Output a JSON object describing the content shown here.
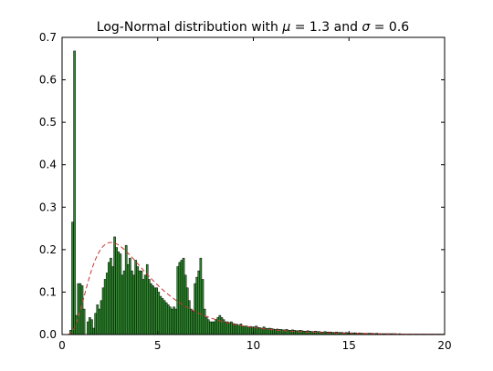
{
  "chart_data": {
    "type": "bar",
    "title_main": "Log-Normal distribution with ",
    "title_mu": "μ",
    "title_mid": " = 1.3 and ",
    "title_sigma": "σ",
    "title_end": " = 0.6",
    "xlabel": "",
    "ylabel": "",
    "xlim": [
      0,
      20
    ],
    "ylim": [
      0,
      0.7
    ],
    "xticks": [
      0,
      5,
      10,
      15,
      20
    ],
    "yticks": [
      0.0,
      0.1,
      0.2,
      0.3,
      0.4,
      0.5,
      0.6,
      0.7
    ],
    "bin_start": 0.0,
    "bin_width": 0.1,
    "values": [
      0.0,
      0.0,
      0.0,
      0.0,
      0.01,
      0.265,
      0.668,
      0.045,
      0.12,
      0.12,
      0.115,
      0.06,
      0.0,
      0.03,
      0.04,
      0.035,
      0.015,
      0.05,
      0.07,
      0.06,
      0.08,
      0.11,
      0.13,
      0.145,
      0.17,
      0.18,
      0.16,
      0.23,
      0.205,
      0.195,
      0.19,
      0.14,
      0.15,
      0.21,
      0.165,
      0.18,
      0.15,
      0.14,
      0.175,
      0.16,
      0.15,
      0.15,
      0.13,
      0.14,
      0.165,
      0.13,
      0.12,
      0.115,
      0.11,
      0.11,
      0.1,
      0.09,
      0.085,
      0.08,
      0.075,
      0.07,
      0.065,
      0.06,
      0.065,
      0.06,
      0.16,
      0.17,
      0.175,
      0.18,
      0.14,
      0.11,
      0.08,
      0.06,
      0.055,
      0.12,
      0.135,
      0.15,
      0.18,
      0.13,
      0.06,
      0.04,
      0.035,
      0.03,
      0.03,
      0.03,
      0.035,
      0.04,
      0.045,
      0.04,
      0.035,
      0.03,
      0.03,
      0.028,
      0.03,
      0.026,
      0.025,
      0.024,
      0.022,
      0.025,
      0.02,
      0.02,
      0.02,
      0.018,
      0.019,
      0.018,
      0.018,
      0.02,
      0.017,
      0.016,
      0.015,
      0.018,
      0.015,
      0.014,
      0.015,
      0.014,
      0.013,
      0.012,
      0.013,
      0.012,
      0.012,
      0.011,
      0.011,
      0.012,
      0.01,
      0.01,
      0.011,
      0.01,
      0.009,
      0.009,
      0.01,
      0.009,
      0.008,
      0.008,
      0.009,
      0.008,
      0.007,
      0.007,
      0.008,
      0.007,
      0.007,
      0.006,
      0.006,
      0.007,
      0.006,
      0.006,
      0.006,
      0.005,
      0.005,
      0.006,
      0.005,
      0.005,
      0.005,
      0.004,
      0.005,
      0.004,
      0.004,
      0.004,
      0.004,
      0.004,
      0.003,
      0.004,
      0.003,
      0.003,
      0.003,
      0.003,
      0.003,
      0.003,
      0.003,
      0.002,
      0.003,
      0.002,
      0.002,
      0.002,
      0.002,
      0.002,
      0.002,
      0.002,
      0.002,
      0.002,
      0.002,
      0.001,
      0.002,
      0.001,
      0.001,
      0.001,
      0.001,
      0.001,
      0.001,
      0.001,
      0.001,
      0.001,
      0.001,
      0.001,
      0.001,
      0.001,
      0.001,
      0.001,
      0.001,
      0.001,
      0.001,
      0.001,
      0.001,
      0.001,
      0.001,
      0.001
    ],
    "pdf_curve": {
      "mu": 1.3,
      "sigma": 0.6,
      "color": "#cc3333",
      "style": "dashed"
    },
    "bar_fill": "#2e8b2e",
    "bar_edge": "#000000",
    "grid": false,
    "legend": false
  }
}
